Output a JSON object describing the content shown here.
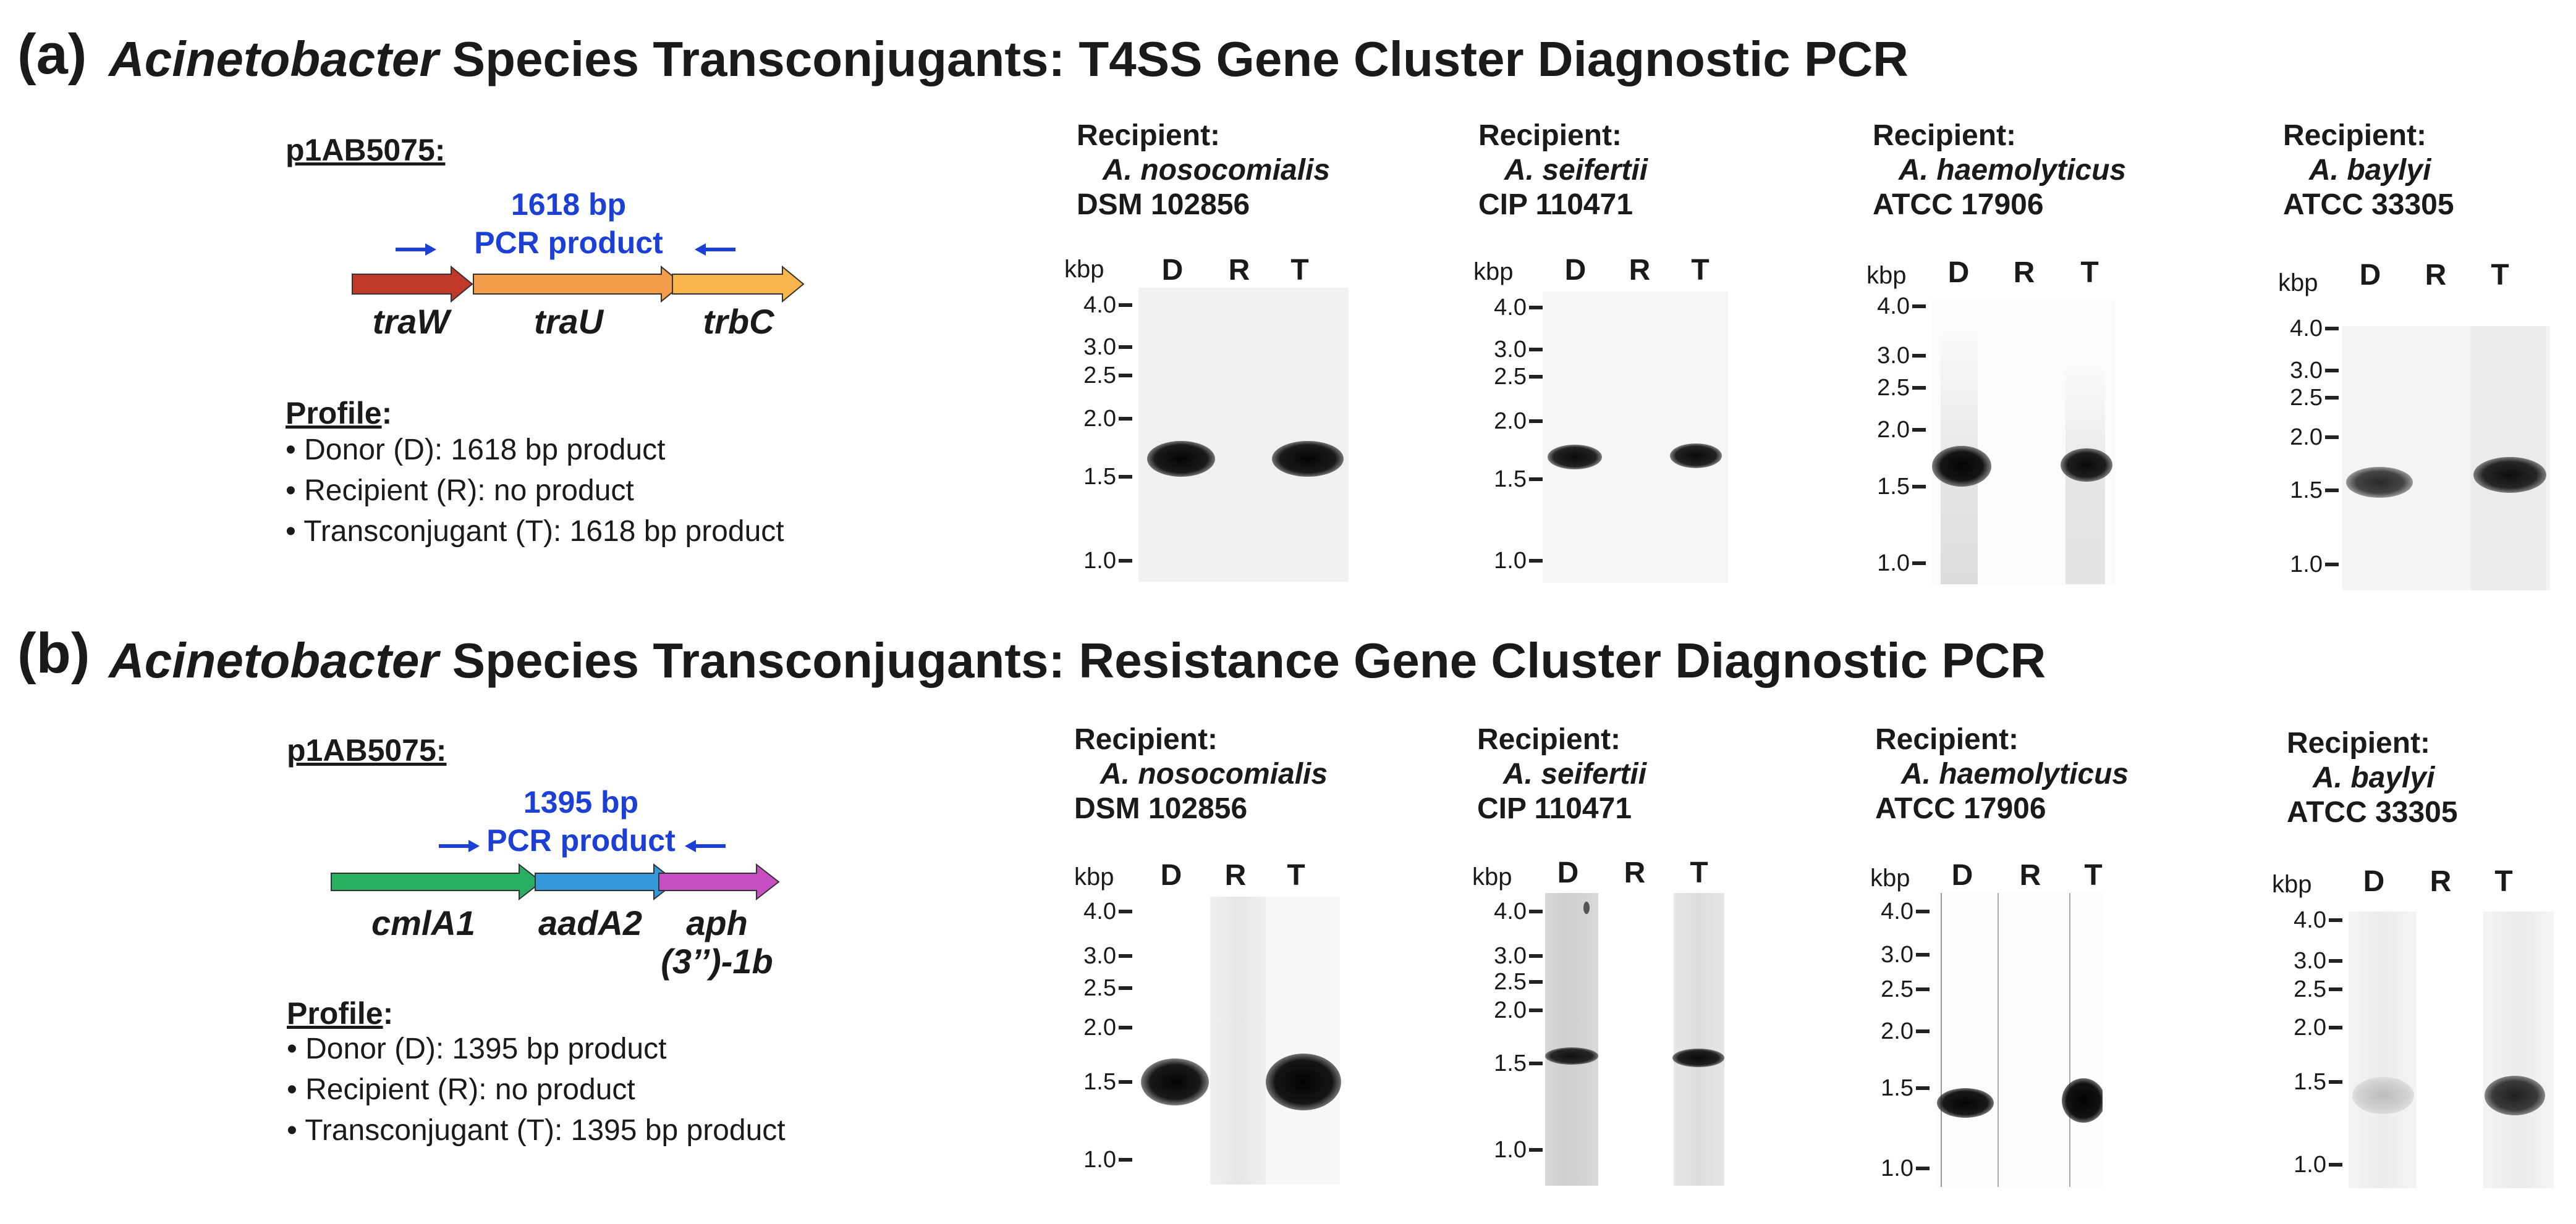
{
  "panels": [
    {
      "letter": "(a)",
      "title_italic": "Acinetobacter",
      "title_rest": " Species Transconjugants: T4SS Gene Cluster Diagnostic PCR",
      "plasmid": "p1AB5075:",
      "pcr_size": "1618 bp",
      "pcr_label": "PCR product",
      "genes": [
        "traW",
        "traU",
        "trbC"
      ],
      "gene_colors": [
        "#c0392b",
        "#f39c4a",
        "#f7b54a"
      ],
      "profile_heading": "Profile",
      "profile_colon": ":",
      "profile_lines": [
        "• Donor (D): 1618 bp product",
        "• Recipient (R): no product",
        "• Transconjugant (T): 1618 bp product"
      ],
      "gels": [
        {
          "recipient_label": "Recipient:",
          "species": "A. nosocomialis",
          "strain": "DSM 102856",
          "kbp": "kbp",
          "lanes": [
            "D",
            "R",
            "T"
          ],
          "ticks": [
            "4.0",
            "3.0",
            "2.5",
            "2.0",
            "1.5",
            "1.0"
          ]
        },
        {
          "recipient_label": "Recipient:",
          "species": "A. seifertii",
          "strain": "CIP 110471",
          "kbp": "kbp",
          "lanes": [
            "D",
            "R",
            "T"
          ],
          "ticks": [
            "4.0",
            "3.0",
            "2.5",
            "2.0",
            "1.5",
            "1.0"
          ]
        },
        {
          "recipient_label": "Recipient:",
          "species": "A. haemolyticus",
          "strain": "ATCC 17906",
          "kbp": "kbp",
          "lanes": [
            "D",
            "R",
            "T"
          ],
          "ticks": [
            "4.0",
            "3.0",
            "2.5",
            "2.0",
            "1.5",
            "1.0"
          ]
        },
        {
          "recipient_label": "Recipient:",
          "species": "A. baylyi",
          "strain": "ATCC 33305",
          "kbp": "kbp",
          "lanes": [
            "D",
            "R",
            "T"
          ],
          "ticks": [
            "4.0",
            "3.0",
            "2.5",
            "2.0",
            "1.5",
            "1.0"
          ]
        }
      ]
    },
    {
      "letter": "(b)",
      "title_italic": "Acinetobacter",
      "title_rest": " Species Transconjugants: Resistance Gene Cluster Diagnostic PCR",
      "plasmid": "p1AB5075:",
      "pcr_size": "1395 bp",
      "pcr_label": "PCR product",
      "genes": [
        "cmlA1",
        "aadA2",
        "aph",
        "(3’’)-1b"
      ],
      "gene_colors": [
        "#27ae60",
        "#3498db",
        "#c64fc2"
      ],
      "profile_heading": "Profile",
      "profile_colon": ":",
      "profile_lines": [
        "• Donor (D): 1395 bp product",
        "• Recipient (R): no product",
        "• Transconjugant (T): 1395 bp product"
      ],
      "gels": [
        {
          "recipient_label": "Recipient:",
          "species": "A. nosocomialis",
          "strain": "DSM 102856",
          "kbp": "kbp",
          "lanes": [
            "D",
            "R",
            "T"
          ],
          "ticks": [
            "4.0",
            "3.0",
            "2.5",
            "2.0",
            "1.5",
            "1.0"
          ]
        },
        {
          "recipient_label": "Recipient:",
          "species": "A. seifertii",
          "strain": "CIP 110471",
          "kbp": "kbp",
          "lanes": [
            "D",
            "R",
            "T"
          ],
          "ticks": [
            "4.0",
            "3.0",
            "2.5",
            "2.0",
            "1.5",
            "1.0"
          ]
        },
        {
          "recipient_label": "Recipient:",
          "species": "A. haemolyticus",
          "strain": "ATCC 17906",
          "kbp": "kbp",
          "lanes": [
            "D",
            "R",
            "T"
          ],
          "ticks": [
            "4.0",
            "3.0",
            "2.5",
            "2.0",
            "1.5",
            "1.0"
          ]
        },
        {
          "recipient_label": "Recipient:",
          "species": "A. baylyi",
          "strain": "ATCC 33305",
          "kbp": "kbp",
          "lanes": [
            "D",
            "R",
            "T"
          ],
          "ticks": [
            "4.0",
            "3.0",
            "2.5",
            "2.0",
            "1.5",
            "1.0"
          ]
        }
      ]
    }
  ]
}
